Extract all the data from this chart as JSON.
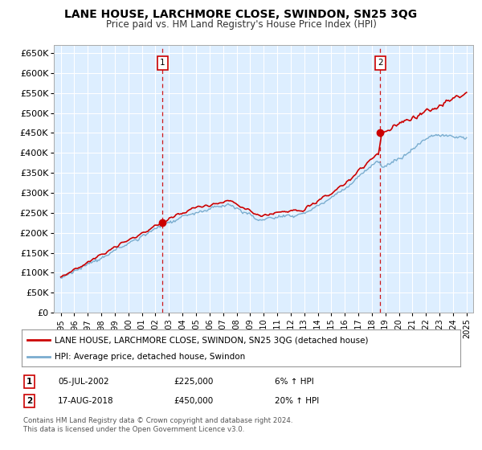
{
  "title": "LANE HOUSE, LARCHMORE CLOSE, SWINDON, SN25 3QG",
  "subtitle": "Price paid vs. HM Land Registry's House Price Index (HPI)",
  "ylabel_ticks": [
    "£0",
    "£50K",
    "£100K",
    "£150K",
    "£200K",
    "£250K",
    "£300K",
    "£350K",
    "£400K",
    "£450K",
    "£500K",
    "£550K",
    "£600K",
    "£650K"
  ],
  "ytick_vals": [
    0,
    50000,
    100000,
    150000,
    200000,
    250000,
    300000,
    350000,
    400000,
    450000,
    500000,
    550000,
    600000,
    650000
  ],
  "ylim": [
    0,
    670000
  ],
  "xlim_start": 1994.5,
  "xlim_end": 2025.5,
  "marker1_x": 2002.51,
  "marker1_y": 225000,
  "marker2_x": 2018.62,
  "marker2_y": 450000,
  "vline1_x": 2002.51,
  "vline2_x": 2018.62,
  "red_line_color": "#cc0000",
  "blue_line_color": "#7aadcf",
  "chart_bg_color": "#ddeeff",
  "legend_entries": [
    "LANE HOUSE, LARCHMORE CLOSE, SWINDON, SN25 3QG (detached house)",
    "HPI: Average price, detached house, Swindon"
  ],
  "annotation1": [
    "1",
    "05-JUL-2002",
    "£225,000",
    "6% ↑ HPI"
  ],
  "annotation2": [
    "2",
    "17-AUG-2018",
    "£450,000",
    "20% ↑ HPI"
  ],
  "footnote": "Contains HM Land Registry data © Crown copyright and database right 2024.\nThis data is licensed under the Open Government Licence v3.0.",
  "bg_color": "#ffffff",
  "grid_color": "#ffffff",
  "title_fontsize": 10,
  "subtitle_fontsize": 8.5,
  "tick_fontsize": 8,
  "xtick_years": [
    1995,
    1996,
    1997,
    1998,
    1999,
    2000,
    2001,
    2002,
    2003,
    2004,
    2005,
    2006,
    2007,
    2008,
    2009,
    2010,
    2011,
    2012,
    2013,
    2014,
    2015,
    2016,
    2017,
    2018,
    2019,
    2020,
    2021,
    2022,
    2023,
    2024,
    2025
  ]
}
